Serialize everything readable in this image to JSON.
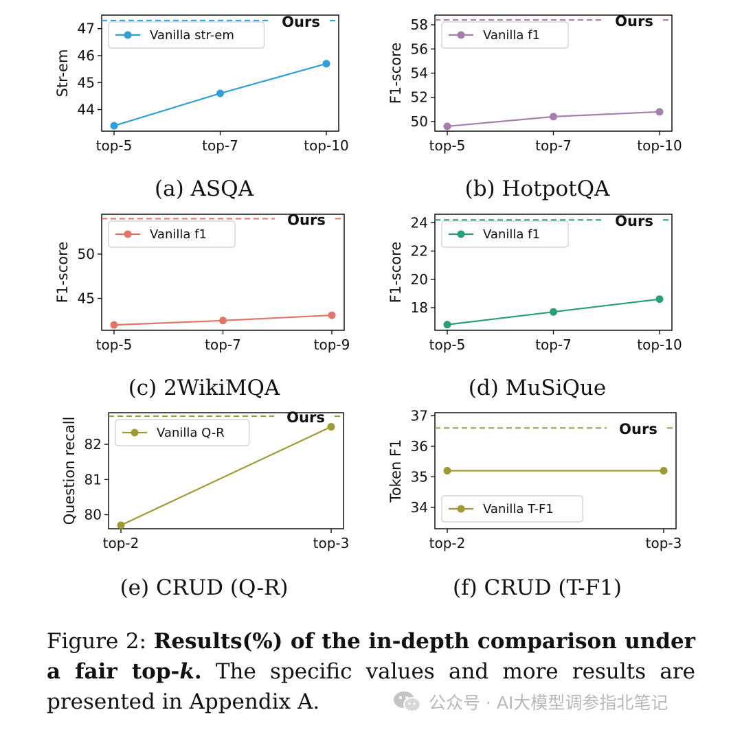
{
  "colors": {
    "asqa": "#2e9fd8",
    "hotpotqa": "#a77db0",
    "wikimqa": "#e07568",
    "musique": "#2a9e73",
    "crud": "#9e9a36"
  },
  "chart_data": [
    {
      "id": "asqa",
      "type": "line",
      "caption": "(a) ASQA",
      "ylabel": "Str-em",
      "categories": [
        "top-5",
        "top-7",
        "top-10"
      ],
      "series": [
        {
          "name": "Vanilla str-em",
          "values": [
            43.4,
            44.6,
            45.7
          ]
        }
      ],
      "reference": {
        "name": "Ours",
        "value": 47.3
      },
      "ylim": [
        43.2,
        47.5
      ],
      "yticks": [
        44,
        45,
        46,
        47
      ],
      "legend_loc": "upper-left",
      "color_key": "asqa"
    },
    {
      "id": "hotpotqa",
      "type": "line",
      "caption": "(b) HotpotQA",
      "ylabel": "F1-score",
      "categories": [
        "top-5",
        "top-7",
        "top-10"
      ],
      "series": [
        {
          "name": "Vanilla f1",
          "values": [
            49.6,
            50.4,
            50.8
          ]
        }
      ],
      "reference": {
        "name": "Ours",
        "value": 58.4
      },
      "ylim": [
        49.2,
        58.8
      ],
      "yticks": [
        50,
        52,
        54,
        56,
        58
      ],
      "legend_loc": "upper-left",
      "color_key": "hotpotqa"
    },
    {
      "id": "wikimqa",
      "type": "line",
      "caption": "(c) 2WikiMQA",
      "ylabel": "F1-score",
      "categories": [
        "top-5",
        "top-7",
        "top-9"
      ],
      "series": [
        {
          "name": "Vanilla f1",
          "values": [
            42.0,
            42.5,
            43.1
          ]
        }
      ],
      "reference": {
        "name": "Ours",
        "value": 54.0
      },
      "ylim": [
        41.4,
        54.5
      ],
      "yticks": [
        45,
        50
      ],
      "legend_loc": "upper-left",
      "color_key": "wikimqa"
    },
    {
      "id": "musique",
      "type": "line",
      "caption": "(d) MuSiQue",
      "ylabel": "F1-score",
      "categories": [
        "top-5",
        "top-7",
        "top-10"
      ],
      "series": [
        {
          "name": "Vanilla f1",
          "values": [
            16.8,
            17.7,
            18.6
          ]
        }
      ],
      "reference": {
        "name": "Ours",
        "value": 24.2
      },
      "ylim": [
        16.4,
        24.6
      ],
      "yticks": [
        18,
        20,
        22,
        24
      ],
      "legend_loc": "upper-left",
      "color_key": "musique"
    },
    {
      "id": "crud-qr",
      "type": "line",
      "caption": "(e) CRUD (Q-R)",
      "ylabel": "Question recall",
      "categories": [
        "top-2",
        "top-3"
      ],
      "series": [
        {
          "name": "Vanilla Q-R",
          "values": [
            79.7,
            82.5
          ]
        }
      ],
      "reference": {
        "name": "Ours",
        "value": 82.8
      },
      "ylim": [
        79.6,
        82.9
      ],
      "yticks": [
        80,
        81,
        82
      ],
      "legend_loc": "upper-left",
      "color_key": "crud"
    },
    {
      "id": "crud-tf1",
      "type": "line",
      "caption": "(f) CRUD (T-F1)",
      "ylabel": "Token F1",
      "categories": [
        "top-2",
        "top-3"
      ],
      "series": [
        {
          "name": "Vanilla T-F1",
          "values": [
            35.2,
            35.2
          ]
        }
      ],
      "reference": {
        "name": "Ours",
        "value": 36.6
      },
      "ylim": [
        33.3,
        37.1
      ],
      "yticks": [
        34,
        35,
        36,
        37
      ],
      "legend_loc": "lower-left",
      "color_key": "crud"
    }
  ],
  "figure_caption": {
    "label": "Figure 2:",
    "bold_1": "Results(%) of the in-depth comparison under a fair top-",
    "bold_k": "k",
    "bold_2": ".",
    "rest": "The specific values and more results are presented in Appendix A."
  },
  "watermark": {
    "text": "公众号 · AI大模型调参指北笔记",
    "icon": "wechat-icon"
  }
}
